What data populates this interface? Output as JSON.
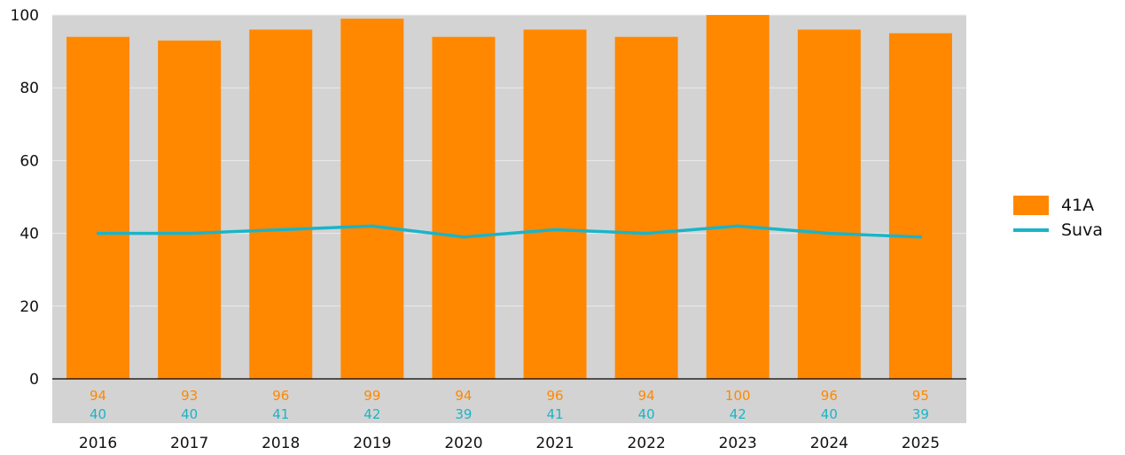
{
  "chart_data": {
    "type": "bar",
    "categories": [
      "2016",
      "2017",
      "2018",
      "2019",
      "2020",
      "2021",
      "2022",
      "2023",
      "2024",
      "2025"
    ],
    "series": [
      {
        "name": "41A",
        "type": "bar",
        "color": "#FF8800",
        "values": [
          94,
          93,
          96,
          99,
          94,
          96,
          94,
          100,
          96,
          95
        ]
      },
      {
        "name": "Suva",
        "type": "line",
        "color": "#1AB4C8",
        "values": [
          40,
          40,
          41,
          42,
          39,
          41,
          40,
          42,
          40,
          39
        ]
      }
    ],
    "ylim": [
      0,
      100
    ],
    "yticks": [
      "0",
      "20",
      "40",
      "60",
      "80",
      "100"
    ],
    "grid": true,
    "legend_position": "right"
  },
  "colors": {
    "plot_background": "#D3D3D3",
    "gridline": "#EBEBEB",
    "axis_line": "#000000",
    "text": "#111111"
  }
}
